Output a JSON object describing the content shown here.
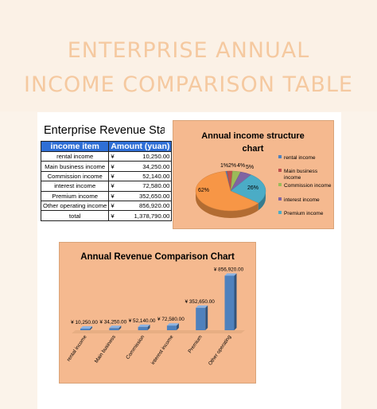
{
  "title": {
    "line1": "ENTERPRISE ANNUAL",
    "line2": "INCOME COMPARISON TABLE"
  },
  "table": {
    "title": "Enterprise Revenue Statistics",
    "headers": [
      "income item",
      "Amount (yuan)"
    ],
    "currency_symbol": "¥",
    "rows": [
      {
        "item": "rental income",
        "amount": "10,250.00"
      },
      {
        "item": "Main business income",
        "amount": "34,250.00"
      },
      {
        "item": "Commission income",
        "amount": "52,140.00"
      },
      {
        "item": "interest income",
        "amount": "72,580.00"
      },
      {
        "item": "Premium income",
        "amount": "352,650.00"
      },
      {
        "item": "Other operating income",
        "amount": "856,920.00"
      },
      {
        "item": "total",
        "amount": "1,378,790.00"
      }
    ]
  },
  "chart_data": [
    {
      "type": "pie",
      "title": "Annual income structure chart",
      "categories": [
        "rental income",
        "Main business income",
        "Commission income",
        "interest income",
        "Premium income",
        "Other operating income"
      ],
      "values": [
        10250,
        34250,
        52140,
        72580,
        352650,
        856920
      ],
      "data_labels": [
        "1%",
        "2%",
        "4%",
        "5%",
        "26%",
        "62%"
      ],
      "legend_entries": [
        "rental income",
        "Main business income",
        "Commission income",
        "interest income",
        "Premium income"
      ],
      "colors": [
        "#4f81bd",
        "#c0504d",
        "#9bbb59",
        "#8064a2",
        "#4bacc6",
        "#f79646"
      ],
      "legend_position": "right",
      "is_3d": true
    },
    {
      "type": "bar",
      "title": "Annual Revenue Comparison Chart",
      "categories": [
        "rental income",
        "Main business",
        "Commission",
        "interest income",
        "Premium",
        "Other operating"
      ],
      "values": [
        10250,
        34250,
        52140,
        72580,
        352650,
        856920
      ],
      "data_labels": [
        "¥ 10,250.00",
        "¥ 34,250.00",
        "¥ 52,140.00",
        "¥ 72,580.00",
        "¥ 352,650.00",
        "¥ 856,920.00"
      ],
      "ylim": [
        0,
        900000
      ],
      "grid": false,
      "bar_color": "#4f81bd",
      "is_3d": true
    }
  ]
}
